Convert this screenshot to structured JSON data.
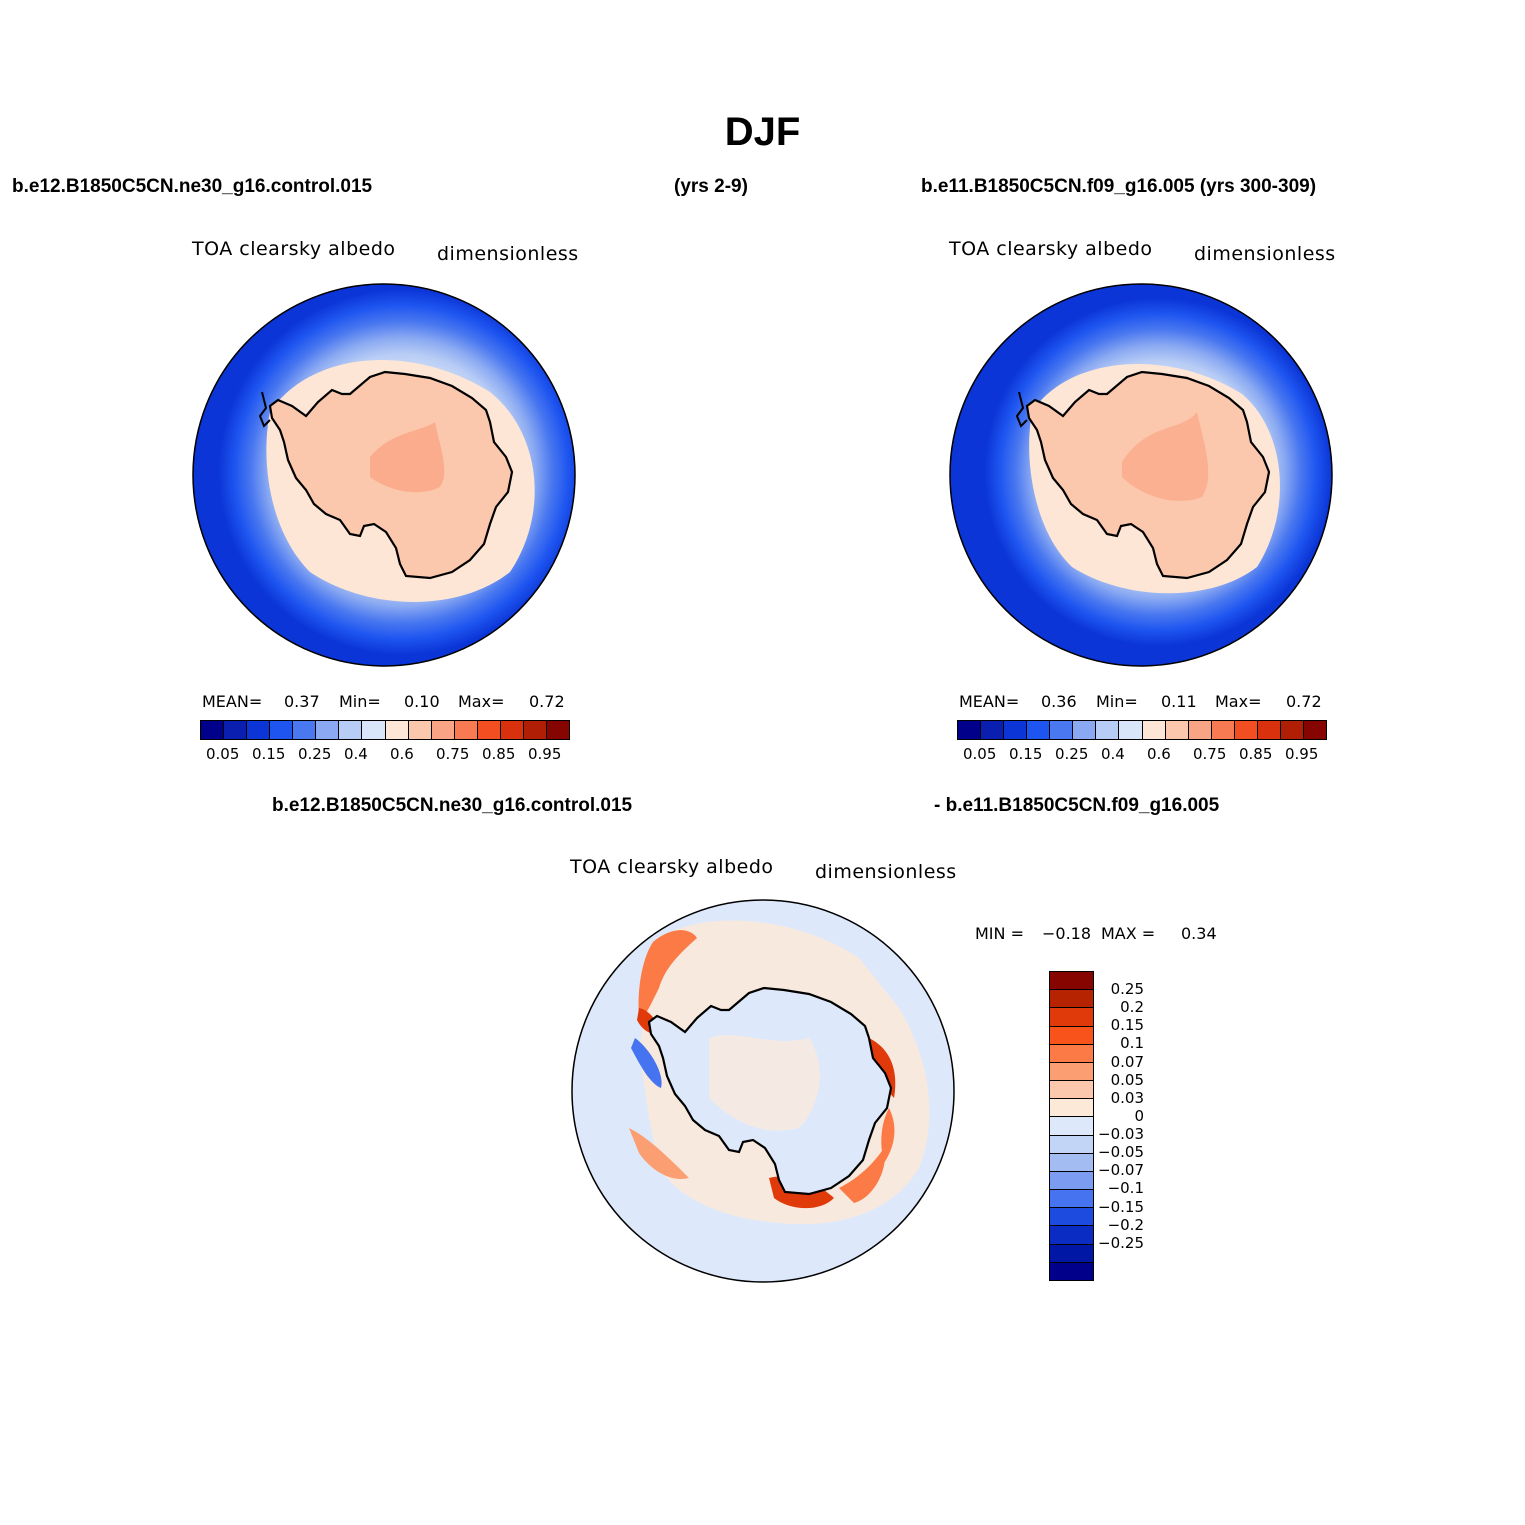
{
  "title": "DJF",
  "case_a": "b.e12.B1850C5CN.ne30_g16.control.015",
  "case_a_years": "(yrs 2-9)",
  "case_b": "b.e11.B1850C5CN.f09_g16.005 (yrs 300-309)",
  "diff_left": "b.e12.B1850C5CN.ne30_g16.control.015",
  "diff_right": "- b.e11.B1850C5CN.f09_g16.005",
  "panels": [
    {
      "variable": "TOA clearsky albedo",
      "units": "dimensionless",
      "stats": {
        "mean_label": "MEAN=",
        "mean": "0.37",
        "min_label": "Min=",
        "min": "0.10",
        "max_label": "Max=",
        "max": "0.72"
      }
    },
    {
      "variable": "TOA clearsky albedo",
      "units": "dimensionless",
      "stats": {
        "mean_label": "MEAN=",
        "mean": "0.36",
        "min_label": "Min=",
        "min": "0.11",
        "max_label": "Max=",
        "max": "0.72"
      }
    },
    {
      "variable": "TOA clearsky albedo",
      "units": "dimensionless",
      "stats": {
        "min_label": "MIN =",
        "min": "−0.18",
        "max_label": "MAX =",
        "max": "0.34"
      }
    }
  ],
  "colorbar_abs": {
    "colors": [
      "#00008b",
      "#0a1fb0",
      "#0b35d6",
      "#1e55f0",
      "#4a78f0",
      "#8aa9f2",
      "#b8cdf5",
      "#d9e6fa",
      "#fde6d6",
      "#fcc8ad",
      "#f9a585",
      "#f77a52",
      "#f34e22",
      "#d9300d",
      "#b01e06",
      "#870500"
    ],
    "ticks": [
      "0.05",
      "0.15",
      "0.25",
      "0.4",
      "0.6",
      "0.75",
      "0.85",
      "0.95"
    ]
  },
  "colorbar_diff": {
    "colors": [
      "#870500",
      "#b52300",
      "#e03a0a",
      "#f8531a",
      "#fb7a45",
      "#fb9e72",
      "#fcc8ad",
      "#fde9d8",
      "#dde9fb",
      "#c2d5f6",
      "#a3bcf2",
      "#7b9cf0",
      "#4673ef",
      "#1d4be0",
      "#0a2cc2",
      "#0017a6",
      "#00008b"
    ],
    "ticks": [
      "0.25",
      "0.2",
      "0.15",
      "0.1",
      "0.07",
      "0.05",
      "0.03",
      "0",
      "−0.03",
      "−0.05",
      "−0.07",
      "−0.1",
      "−0.15",
      "−0.2",
      "−0.25"
    ]
  }
}
